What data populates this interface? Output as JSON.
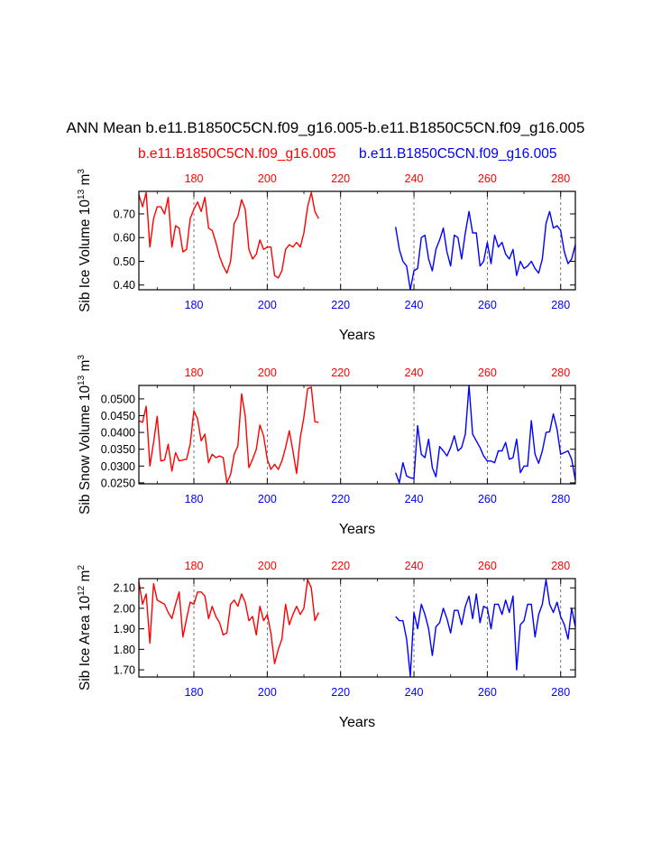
{
  "title": "ANN Mean b.e11.B1850C5CN.f09_g16.005-b.e11.B1850C5CN.f09_g16.005",
  "legend": {
    "case1": "b.e11.B1850C5CN.f09_g16.005",
    "case2": "b.e11.B1850C5CN.f09_g16.005"
  },
  "colors": {
    "case1": "#ff0000",
    "case2": "#0000ff",
    "axis": "#000000"
  },
  "chart_data": [
    {
      "type": "line",
      "title": "",
      "xlabel": "Years",
      "ylabel_main": "Sib Ice Volume 10",
      "ylabel_exp": "13",
      "ylabel_unit": " m",
      "ylabel_unit_exp": "3",
      "xlim": [
        165,
        284
      ],
      "ylim": [
        0.38,
        0.795
      ],
      "xticks": [
        180,
        200,
        220,
        240,
        260,
        280
      ],
      "xtick_labels": [
        "180",
        "200",
        "220",
        "240",
        "260",
        "280"
      ],
      "yticks": [
        0.4,
        0.5,
        0.6,
        0.7
      ],
      "ytick_labels": [
        "0.40",
        "0.50",
        "0.60",
        "0.70"
      ],
      "gridlines_x": [
        180,
        200,
        220,
        240,
        260,
        280
      ],
      "series": [
        {
          "name": "b.e11.B1850C5CN.f09_g16.005",
          "x": [
            165,
            166,
            167,
            168,
            169,
            170,
            171,
            172,
            173,
            174,
            175,
            176,
            177,
            178,
            179,
            180,
            181,
            182,
            183,
            184,
            185,
            186,
            187,
            188,
            189,
            190,
            191,
            192,
            193,
            194,
            195,
            196,
            197,
            198,
            199,
            200,
            201,
            202,
            203,
            204,
            205,
            206,
            207,
            208,
            209,
            210,
            211,
            212,
            213,
            214
          ],
          "y": [
            0.78,
            0.73,
            0.79,
            0.56,
            0.68,
            0.73,
            0.73,
            0.7,
            0.77,
            0.56,
            0.65,
            0.64,
            0.54,
            0.55,
            0.68,
            0.72,
            0.75,
            0.71,
            0.77,
            0.64,
            0.63,
            0.58,
            0.52,
            0.48,
            0.45,
            0.5,
            0.66,
            0.69,
            0.76,
            0.72,
            0.55,
            0.51,
            0.53,
            0.59,
            0.55,
            0.56,
            0.56,
            0.44,
            0.43,
            0.46,
            0.55,
            0.57,
            0.56,
            0.58,
            0.56,
            0.62,
            0.73,
            0.79,
            0.71,
            0.68
          ]
        },
        {
          "name": "b.e11.B1850C5CN.f09_g16.005",
          "x": [
            235,
            236,
            237,
            238,
            239,
            240,
            241,
            242,
            243,
            244,
            245,
            246,
            247,
            248,
            249,
            250,
            251,
            252,
            253,
            254,
            255,
            256,
            257,
            258,
            259,
            260,
            261,
            262,
            263,
            264,
            265,
            266,
            267,
            268,
            269,
            270,
            271,
            272,
            273,
            274,
            275,
            276,
            277,
            278,
            279,
            280,
            281,
            282,
            283,
            284
          ],
          "y": [
            0.645,
            0.55,
            0.5,
            0.48,
            0.38,
            0.46,
            0.47,
            0.6,
            0.61,
            0.51,
            0.46,
            0.55,
            0.59,
            0.64,
            0.54,
            0.48,
            0.61,
            0.6,
            0.51,
            0.62,
            0.71,
            0.62,
            0.62,
            0.48,
            0.5,
            0.58,
            0.49,
            0.61,
            0.56,
            0.58,
            0.53,
            0.51,
            0.55,
            0.44,
            0.5,
            0.47,
            0.48,
            0.5,
            0.47,
            0.45,
            0.51,
            0.66,
            0.71,
            0.64,
            0.65,
            0.63,
            0.54,
            0.49,
            0.51,
            0.57
          ]
        }
      ]
    },
    {
      "type": "line",
      "title": "",
      "xlabel": "Years",
      "ylabel_main": "Sib Snow Volume 10",
      "ylabel_exp": "13",
      "ylabel_unit": " m",
      "ylabel_unit_exp": "3",
      "xlim": [
        165,
        284
      ],
      "ylim": [
        0.0247,
        0.054
      ],
      "xticks": [
        180,
        200,
        220,
        240,
        260,
        280
      ],
      "xtick_labels": [
        "180",
        "200",
        "220",
        "240",
        "260",
        "280"
      ],
      "yticks": [
        0.025,
        0.03,
        0.035,
        0.04,
        0.045,
        0.05
      ],
      "ytick_labels": [
        "0.0250",
        "0.0300",
        "0.0350",
        "0.0400",
        "0.0450",
        "0.0500"
      ],
      "gridlines_x": [
        180,
        200,
        220,
        240,
        260,
        280
      ],
      "series": [
        {
          "name": "b.e11.B1850C5CN.f09_g16.005",
          "x": [
            165,
            166,
            167,
            168,
            169,
            170,
            171,
            172,
            173,
            174,
            175,
            176,
            177,
            178,
            179,
            180,
            181,
            182,
            183,
            184,
            185,
            186,
            187,
            188,
            189,
            190,
            191,
            192,
            193,
            194,
            195,
            196,
            197,
            198,
            199,
            200,
            201,
            202,
            203,
            204,
            205,
            206,
            207,
            208,
            209,
            210,
            211,
            212,
            213,
            214
          ],
          "y": [
            0.0435,
            0.043,
            0.0478,
            0.03,
            0.037,
            0.0448,
            0.0315,
            0.0318,
            0.0365,
            0.0285,
            0.034,
            0.0315,
            0.0318,
            0.032,
            0.0365,
            0.0465,
            0.044,
            0.0375,
            0.0395,
            0.031,
            0.0335,
            0.0325,
            0.033,
            0.0325,
            0.025,
            0.0275,
            0.0335,
            0.036,
            0.0515,
            0.045,
            0.0295,
            0.032,
            0.035,
            0.0422,
            0.039,
            0.032,
            0.029,
            0.0305,
            0.029,
            0.0315,
            0.0355,
            0.0405,
            0.0345,
            0.0278,
            0.0385,
            0.0445,
            0.053,
            0.0535,
            0.0432,
            0.043
          ]
        },
        {
          "name": "b.e11.B1850C5CN.f09_g16.005",
          "x": [
            235,
            236,
            237,
            238,
            239,
            240,
            241,
            242,
            243,
            244,
            245,
            246,
            247,
            248,
            249,
            250,
            251,
            252,
            253,
            254,
            255,
            256,
            257,
            258,
            259,
            260,
            261,
            262,
            263,
            264,
            265,
            266,
            267,
            268,
            269,
            270,
            271,
            272,
            273,
            274,
            275,
            276,
            277,
            278,
            279,
            280,
            281,
            282,
            283,
            284
          ],
          "y": [
            0.028,
            0.025,
            0.031,
            0.027,
            0.0265,
            0.0263,
            0.042,
            0.0335,
            0.0325,
            0.038,
            0.0295,
            0.0268,
            0.0358,
            0.0345,
            0.033,
            0.0355,
            0.039,
            0.0345,
            0.0355,
            0.0395,
            0.054,
            0.0395,
            0.0375,
            0.0355,
            0.033,
            0.0315,
            0.0315,
            0.031,
            0.0345,
            0.0345,
            0.037,
            0.032,
            0.0325,
            0.038,
            0.028,
            0.03,
            0.03,
            0.0435,
            0.0335,
            0.0308,
            0.0345,
            0.04,
            0.0402,
            0.0455,
            0.041,
            0.0335,
            0.034,
            0.0345,
            0.032,
            0.0258
          ]
        }
      ]
    },
    {
      "type": "line",
      "title": "",
      "xlabel": "Years",
      "ylabel_main": "Sib Ice Area 10",
      "ylabel_exp": "12",
      "ylabel_unit": " m",
      "ylabel_unit_exp": "2",
      "xlim": [
        165,
        284
      ],
      "ylim": [
        1.665,
        2.145
      ],
      "xticks": [
        180,
        200,
        220,
        240,
        260,
        280
      ],
      "xtick_labels": [
        "180",
        "200",
        "220",
        "240",
        "260",
        "280"
      ],
      "yticks": [
        1.7,
        1.8,
        1.9,
        2.0,
        2.1
      ],
      "ytick_labels": [
        "1.70",
        "1.80",
        "1.90",
        "2.00",
        "2.10"
      ],
      "gridlines_x": [
        180,
        200,
        220,
        240,
        260,
        280
      ],
      "series": [
        {
          "name": "b.e11.B1850C5CN.f09_g16.005",
          "x": [
            165,
            166,
            167,
            168,
            169,
            170,
            171,
            172,
            173,
            174,
            175,
            176,
            177,
            178,
            179,
            180,
            181,
            182,
            183,
            184,
            185,
            186,
            187,
            188,
            189,
            190,
            191,
            192,
            193,
            194,
            195,
            196,
            197,
            198,
            199,
            200,
            201,
            202,
            203,
            204,
            205,
            206,
            207,
            208,
            209,
            210,
            211,
            212,
            213,
            214
          ],
          "y": [
            2.13,
            2.02,
            2.07,
            1.83,
            2.12,
            2.04,
            2.03,
            2.02,
            1.98,
            1.95,
            2.02,
            2.08,
            1.86,
            1.95,
            2.03,
            2.02,
            2.08,
            2.08,
            2.06,
            1.95,
            2.01,
            1.96,
            1.93,
            1.87,
            1.88,
            2.02,
            2.04,
            2.01,
            2.07,
            2.03,
            1.94,
            1.96,
            1.87,
            2.01,
            1.94,
            1.97,
            1.88,
            1.73,
            1.8,
            1.85,
            2.02,
            1.92,
            1.97,
            2.01,
            1.97,
            2.0,
            2.14,
            2.1,
            1.94,
            1.98
          ]
        },
        {
          "name": "b.e11.B1850C5CN.f09_g16.005",
          "x": [
            235,
            236,
            237,
            238,
            239,
            240,
            241,
            242,
            243,
            244,
            245,
            246,
            247,
            248,
            249,
            250,
            251,
            252,
            253,
            254,
            255,
            256,
            257,
            258,
            259,
            260,
            261,
            262,
            263,
            264,
            265,
            266,
            267,
            268,
            269,
            270,
            271,
            272,
            273,
            274,
            275,
            276,
            277,
            278,
            279,
            280,
            281,
            282,
            283,
            284
          ],
          "y": [
            1.96,
            1.94,
            1.94,
            1.85,
            1.67,
            1.98,
            1.9,
            2.02,
            1.97,
            1.9,
            1.77,
            1.91,
            1.93,
            2.0,
            1.95,
            1.88,
            1.99,
            1.99,
            1.92,
            2.01,
            2.06,
            1.95,
            2.07,
            1.93,
            2.01,
            2.0,
            1.9,
            2.02,
            2.02,
            1.97,
            2.04,
            1.98,
            2.06,
            1.7,
            1.92,
            1.94,
            2.02,
            2.02,
            1.86,
            1.97,
            2.02,
            2.14,
            2.02,
            1.98,
            2.03,
            1.96,
            1.92,
            1.85,
            2.0,
            1.91
          ]
        }
      ]
    }
  ]
}
